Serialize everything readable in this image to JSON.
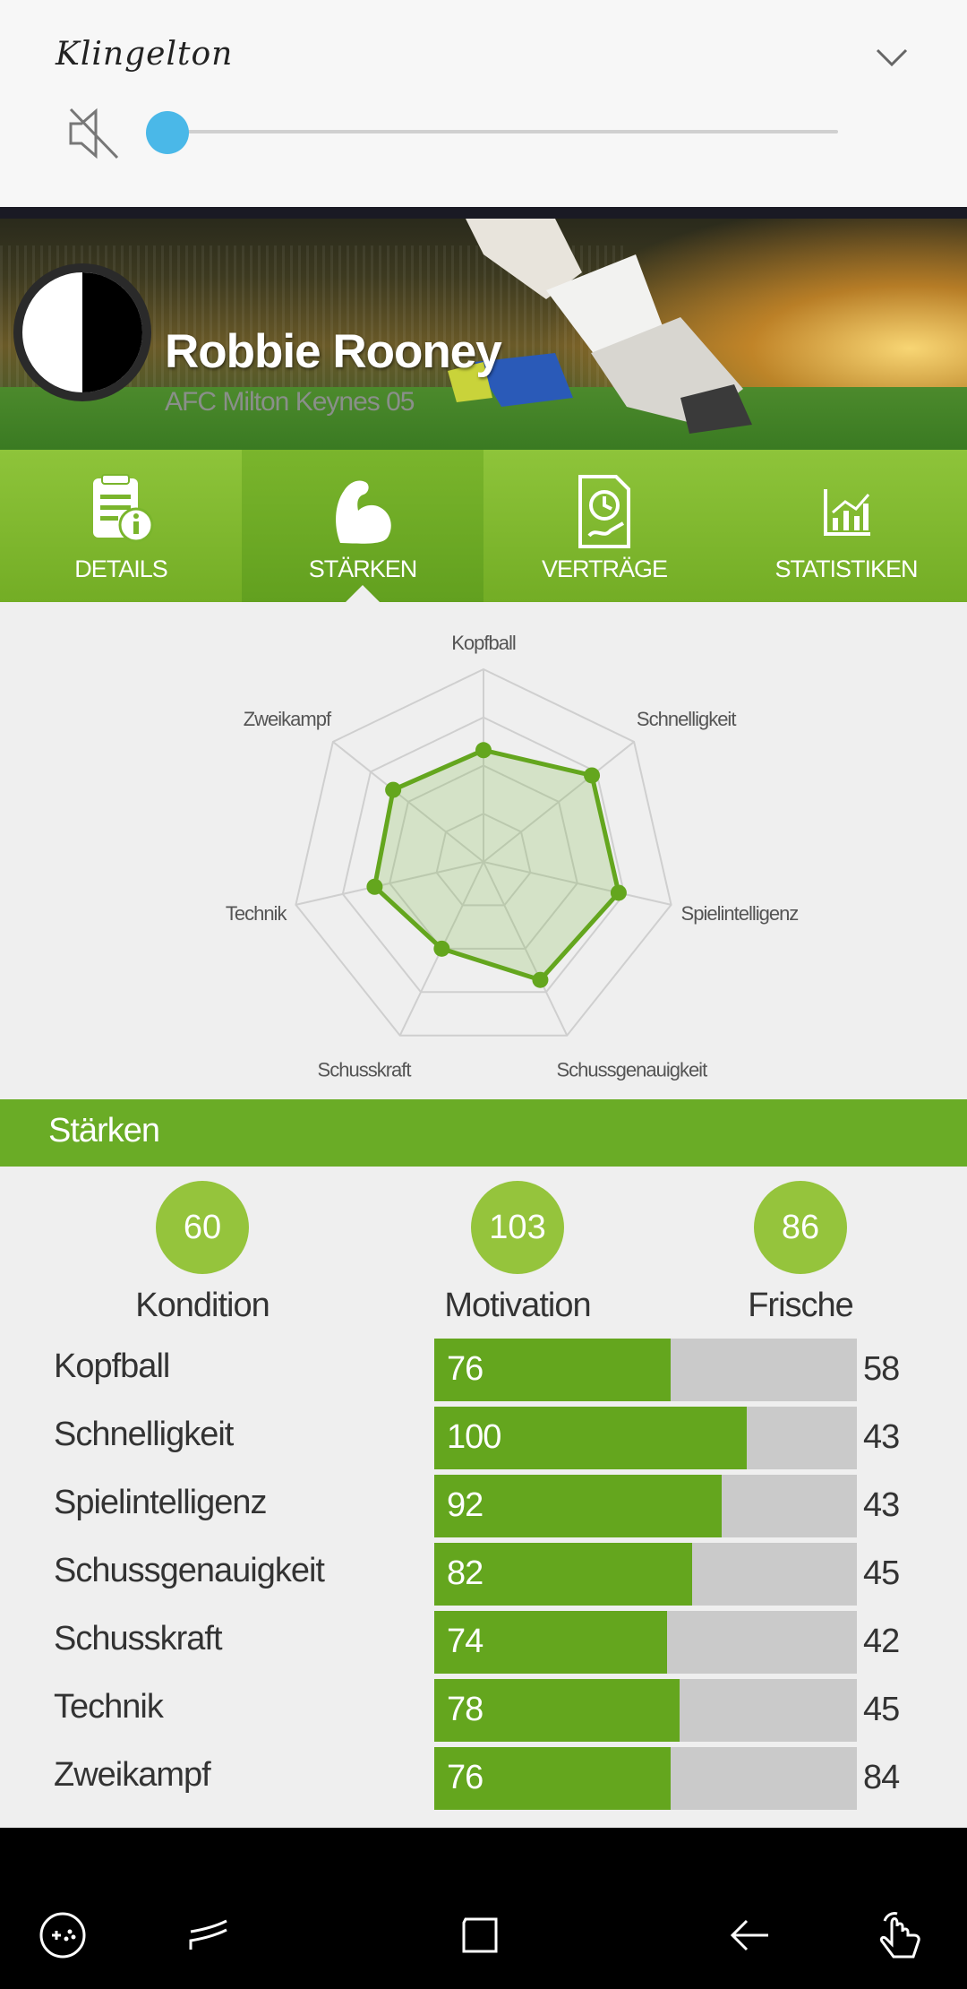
{
  "volume_panel": {
    "title": "Klingelton",
    "level": 0,
    "icons": [
      "mute-icon",
      "chevron-down-icon"
    ]
  },
  "player": {
    "name": "Robbie Rooney",
    "team": "AFC Milton Keynes 05"
  },
  "tabs": [
    {
      "label": "DETAILS",
      "icon": "document-info-icon",
      "active": false
    },
    {
      "label": "STÄRKEN",
      "icon": "flexed-arm-icon",
      "active": true
    },
    {
      "label": "VERTRÄGE",
      "icon": "contract-clock-icon",
      "active": false
    },
    {
      "label": "STATISTIKEN",
      "icon": "chart-icon",
      "active": false
    }
  ],
  "chart_data": {
    "type": "radar",
    "axes": [
      "Kopfball",
      "Schnelligkeit",
      "Spielintelligenz",
      "Schussgenauigkeit",
      "Schusskraft",
      "Technik",
      "Zweikampf"
    ],
    "values": [
      58,
      72,
      72,
      68,
      50,
      58,
      60
    ],
    "max": 100,
    "color": "#64a61e"
  },
  "section": {
    "title": "Stärken"
  },
  "summary": [
    {
      "value": "60",
      "label": "Kondition"
    },
    {
      "value": "103",
      "label": "Motivation"
    },
    {
      "value": "86",
      "label": "Frische"
    }
  ],
  "strengths": [
    {
      "label": "Kopfball",
      "value": "76",
      "right": "58",
      "fill": 0.56
    },
    {
      "label": "Schnelligkeit",
      "value": "100",
      "right": "43",
      "fill": 0.74
    },
    {
      "label": "Spielintelligenz",
      "value": "92",
      "right": "43",
      "fill": 0.68
    },
    {
      "label": "Schussgenauigkeit",
      "value": "82",
      "right": "45",
      "fill": 0.61
    },
    {
      "label": "Schusskraft",
      "value": "74",
      "right": "42",
      "fill": 0.55
    },
    {
      "label": "Technik",
      "value": "78",
      "right": "45",
      "fill": 0.58
    },
    {
      "label": "Zweikampf",
      "value": "76",
      "right": "84",
      "fill": 0.56
    }
  ],
  "navbar": {
    "icons": [
      "game-launcher-icon",
      "recent-apps-icon",
      "home-icon",
      "back-icon",
      "touch-assist-icon"
    ]
  }
}
